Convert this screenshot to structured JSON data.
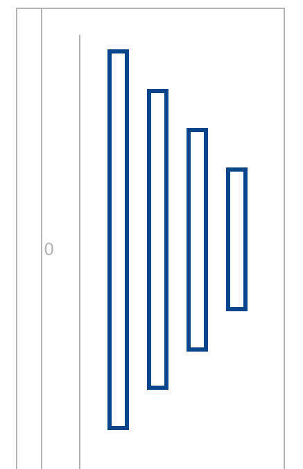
{
  "figure": {
    "zero_label": "0",
    "bar_border_color": "#06458a",
    "frame_line_color": "#b3b3b3",
    "bars": [
      {
        "name": "bar-1"
      },
      {
        "name": "bar-2"
      },
      {
        "name": "bar-3"
      },
      {
        "name": "bar-4"
      }
    ]
  }
}
